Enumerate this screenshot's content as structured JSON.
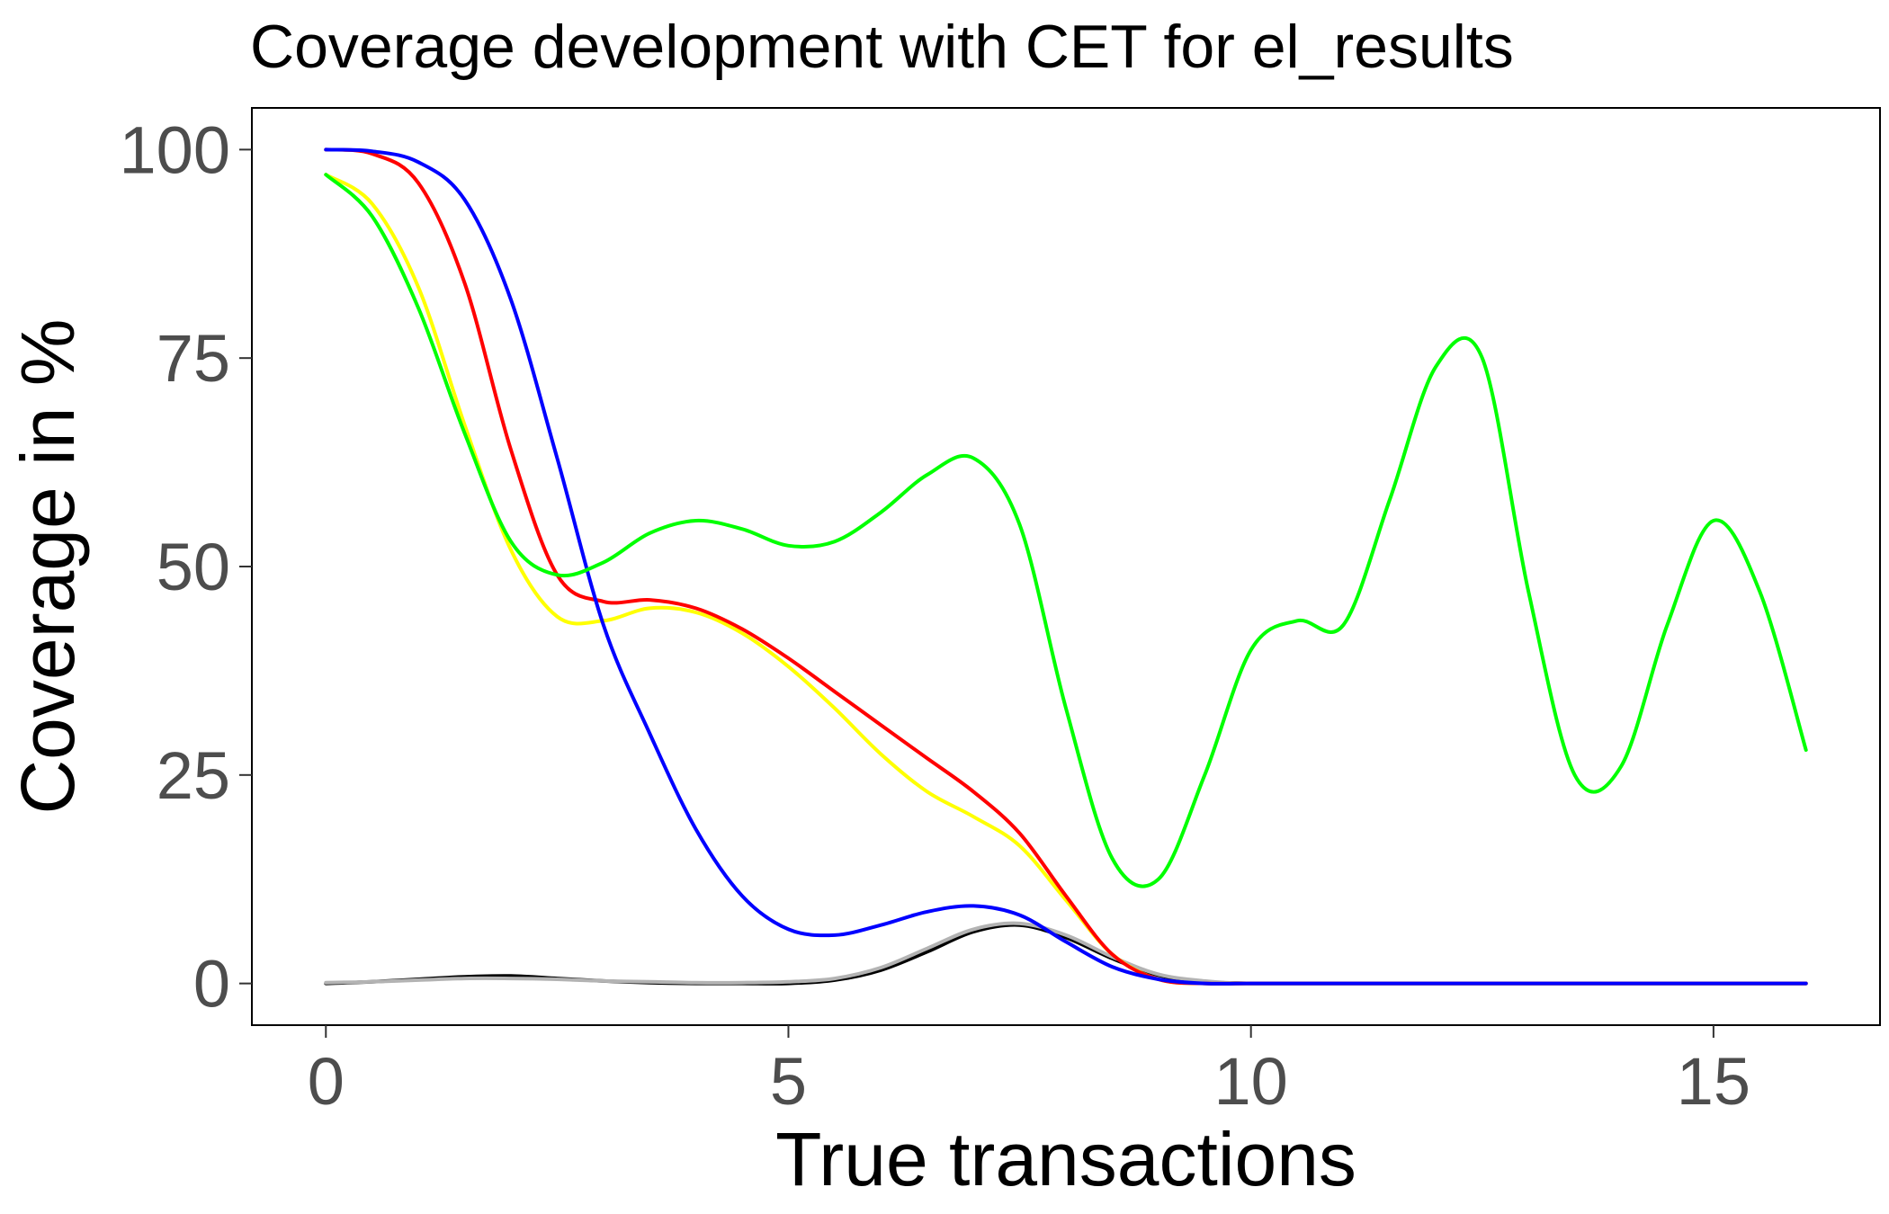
{
  "chart_data": {
    "type": "line",
    "title": "Coverage development with CET for el_results",
    "xlabel": "True transactions",
    "ylabel": "Coverage in %",
    "xlim": [
      -0.8,
      16.8
    ],
    "ylim": [
      -5,
      105
    ],
    "x_ticks": [
      0,
      5,
      10,
      15
    ],
    "y_ticks": [
      0,
      25,
      50,
      75,
      100
    ],
    "x_tick_labels": [
      "0",
      "5",
      "10",
      "15"
    ],
    "y_tick_labels": [
      "0",
      "25",
      "50",
      "75",
      "100"
    ],
    "grid": false,
    "legend": "none",
    "series": [
      {
        "color": "#000000",
        "x": [
          0,
          0.5,
          1,
          1.5,
          2,
          2.5,
          3,
          3.5,
          4,
          4.5,
          5,
          5.5,
          6,
          6.5,
          7,
          7.5,
          8,
          8.5,
          9,
          9.5,
          10,
          11,
          12,
          13,
          14,
          15,
          16
        ],
        "values": [
          0,
          0.2,
          0.5,
          0.8,
          0.9,
          0.6,
          0.3,
          0.1,
          0,
          0,
          0,
          0.4,
          1.6,
          3.8,
          6.2,
          7,
          5.5,
          3,
          1,
          0.2,
          0,
          0,
          0,
          0,
          0,
          0,
          0
        ]
      },
      {
        "color": "#b3b3b3",
        "x": [
          0,
          0.5,
          1,
          1.5,
          2,
          2.5,
          3,
          3.5,
          4,
          4.5,
          5,
          5.5,
          6,
          6.5,
          7,
          7.5,
          8,
          8.5,
          9,
          9.5,
          10,
          11,
          12,
          13,
          14,
          15,
          16
        ],
        "values": [
          0.1,
          0.2,
          0.4,
          0.6,
          0.6,
          0.5,
          0.3,
          0.2,
          0.1,
          0.1,
          0.2,
          0.6,
          1.9,
          4.2,
          6.5,
          7.2,
          5.8,
          3.2,
          1.1,
          0.3,
          0,
          0,
          0,
          0,
          0,
          0,
          0
        ]
      },
      {
        "color": "#ffff00",
        "x": [
          0,
          0.5,
          1,
          1.5,
          2,
          2.5,
          3,
          3.5,
          4,
          4.5,
          5,
          5.5,
          6,
          6.5,
          7,
          7.5,
          8,
          8.5,
          9,
          9.5,
          10,
          11,
          12,
          13,
          14,
          15,
          16
        ],
        "values": [
          97,
          93.5,
          83.5,
          67,
          52,
          44,
          43.5,
          45,
          44.5,
          42,
          38,
          33,
          27.5,
          23,
          20,
          16.5,
          10,
          3.5,
          0.5,
          0,
          0,
          0,
          0,
          0,
          0,
          0,
          0
        ]
      },
      {
        "color": "#ff0000",
        "x": [
          0,
          0.5,
          1,
          1.5,
          2,
          2.5,
          3,
          3.5,
          4,
          4.5,
          5,
          5.5,
          6,
          6.5,
          7,
          7.5,
          8,
          8.5,
          9,
          9.5,
          10,
          11,
          12,
          13,
          14,
          15,
          16
        ],
        "values": [
          100,
          99.5,
          96,
          84,
          64,
          49,
          45.8,
          46,
          45,
          42.5,
          39,
          35,
          31,
          27,
          23,
          18,
          10.5,
          3.5,
          0.5,
          0,
          0,
          0,
          0,
          0,
          0,
          0,
          0
        ]
      },
      {
        "color": "#0000ff",
        "x": [
          0,
          0.5,
          1,
          1.5,
          2,
          2.5,
          3,
          3.5,
          4,
          4.5,
          5,
          5.5,
          6,
          6.5,
          7,
          7.5,
          8,
          8.5,
          9,
          9.5,
          10,
          11,
          12,
          13,
          14,
          15,
          16
        ],
        "values": [
          100,
          99.8,
          98.5,
          94,
          82,
          63,
          43,
          30,
          18.5,
          10.5,
          6.5,
          5.8,
          7,
          8.6,
          9.3,
          8.2,
          5,
          2,
          0.5,
          0,
          0,
          0,
          0,
          0,
          0,
          0,
          0
        ]
      },
      {
        "color": "#00ff00",
        "x": [
          0,
          0.5,
          1,
          1.5,
          2,
          2.5,
          3,
          3.5,
          4,
          4.5,
          5,
          5.5,
          6,
          6.5,
          7,
          7.5,
          8,
          8.5,
          9,
          9.5,
          10,
          10.5,
          11,
          11.5,
          12,
          12.5,
          13,
          13.5,
          14,
          14.5,
          15,
          15.5,
          16
        ],
        "values": [
          97,
          92,
          81,
          66,
          53,
          49,
          50.5,
          54,
          55.5,
          54.5,
          52.5,
          53,
          56.5,
          61,
          63,
          55,
          33,
          15,
          12.5,
          25,
          40,
          43.5,
          43,
          58,
          74,
          75,
          47,
          25,
          26,
          43,
          55.5,
          47,
          28
        ]
      }
    ]
  }
}
